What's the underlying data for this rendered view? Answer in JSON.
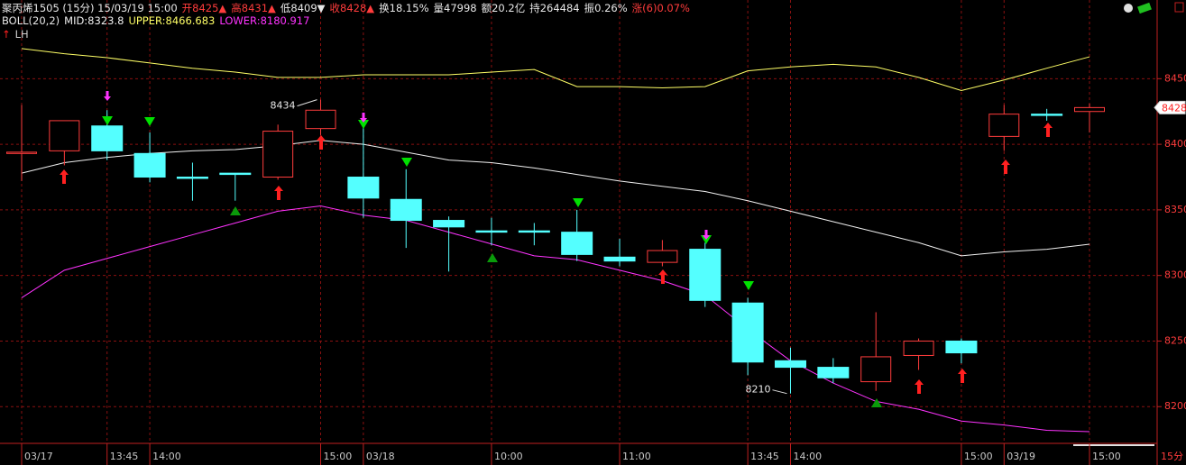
{
  "chart_data": {
    "type": "candlestick",
    "header": [
      {
        "text": "聚丙烯1505 (15分) 15/03/19 15:00",
        "color": "#e8e8e8"
      },
      {
        "text": "开8425▲",
        "color": "#ff3c3c"
      },
      {
        "text": "高8431▲",
        "color": "#ff3c3c"
      },
      {
        "text": "低8409▼",
        "color": "#e8e8e8"
      },
      {
        "text": "收8428▲",
        "color": "#ff3c3c"
      },
      {
        "text": "换18.15%",
        "color": "#e8e8e8"
      },
      {
        "text": "量47998",
        "color": "#e8e8e8"
      },
      {
        "text": "额20.2亿",
        "color": "#e8e8e8"
      },
      {
        "text": "持264484",
        "color": "#e8e8e8"
      },
      {
        "text": "振0.26%",
        "color": "#e8e8e8"
      },
      {
        "text": "涨(6)0.07%",
        "color": "#ff3c3c"
      }
    ],
    "indicator_name": "BOLL(20,2)",
    "signal_name": "LH",
    "corner_label": "15分",
    "categories": [
      "03/17",
      null,
      "13:45",
      "14:00",
      null,
      null,
      null,
      "15:00",
      "03/18",
      null,
      null,
      "10:00",
      null,
      null,
      "11:00",
      null,
      null,
      "13:45",
      "14:00",
      null,
      null,
      null,
      "15:00",
      "03/19",
      null,
      "15:00"
    ],
    "open": [
      8393,
      8395,
      8414,
      8393,
      8375,
      8378,
      8375,
      8412,
      8375,
      8358,
      8342,
      8334,
      8334,
      8333,
      8314,
      8310,
      8320,
      8279,
      8235,
      8230,
      8219,
      8239,
      8250,
      8406,
      8423,
      8425
    ],
    "high": [
      8430,
      8418,
      8426,
      8409,
      8386,
      8378,
      8415,
      8434,
      8414,
      8381,
      8345,
      8344,
      8340,
      8350,
      8328,
      8327,
      8325,
      8283,
      8245,
      8237,
      8272,
      8252,
      8252,
      8430,
      8427,
      8431
    ],
    "low": [
      8372,
      8384,
      8388,
      8371,
      8357,
      8357,
      8373,
      8407,
      8344,
      8321,
      8303,
      8323,
      8323,
      8311,
      8307,
      8307,
      8276,
      8224,
      8210,
      8218,
      8212,
      8228,
      8233,
      8395,
      8418,
      8409
    ],
    "close": [
      8394,
      8418,
      8395,
      8375,
      8374,
      8377,
      8410,
      8426,
      8359,
      8342,
      8337,
      8333,
      8333,
      8316,
      8311,
      8319,
      8281,
      8234,
      8230,
      8222,
      8238,
      8250,
      8241,
      8423,
      8422,
      8428
    ],
    "up_color": "#ff3c3c",
    "down_color": "#54ffff",
    "series": [
      {
        "label": "MID:8323.8",
        "color": "#f0f0f0",
        "values": [
          8378,
          8386,
          8390,
          8393,
          8395,
          8396,
          8399,
          8403,
          8400,
          8394,
          8388,
          8386,
          8382,
          8377,
          8372,
          8368,
          8364,
          8357,
          8349,
          8341,
          8333,
          8325,
          8315,
          8318,
          8320,
          8323.8
        ]
      },
      {
        "label": "UPPER:8466.683",
        "color": "#ffff66",
        "values": [
          8473,
          8469,
          8466,
          8462,
          8458,
          8455,
          8451,
          8451,
          8453,
          8453,
          8453,
          8455,
          8457,
          8444,
          8444,
          8443,
          8444,
          8456,
          8459,
          8461,
          8459,
          8451,
          8441,
          8449,
          8458,
          8466.683
        ]
      },
      {
        "label": "LOWER:8180.917",
        "color": "#ff33ff",
        "values": [
          8283,
          8304,
          8313,
          8322,
          8331,
          8340,
          8349,
          8353,
          8346,
          8342,
          8333,
          8324,
          8315,
          8312,
          8304,
          8296,
          8285,
          8259,
          8235,
          8218,
          8204,
          8198,
          8189,
          8186,
          8182,
          8180.917
        ]
      }
    ],
    "ylim": [
      8172,
      8510
    ],
    "yticks": [
      8200,
      8250,
      8300,
      8350,
      8400,
      8450
    ],
    "grid": true
  }
}
